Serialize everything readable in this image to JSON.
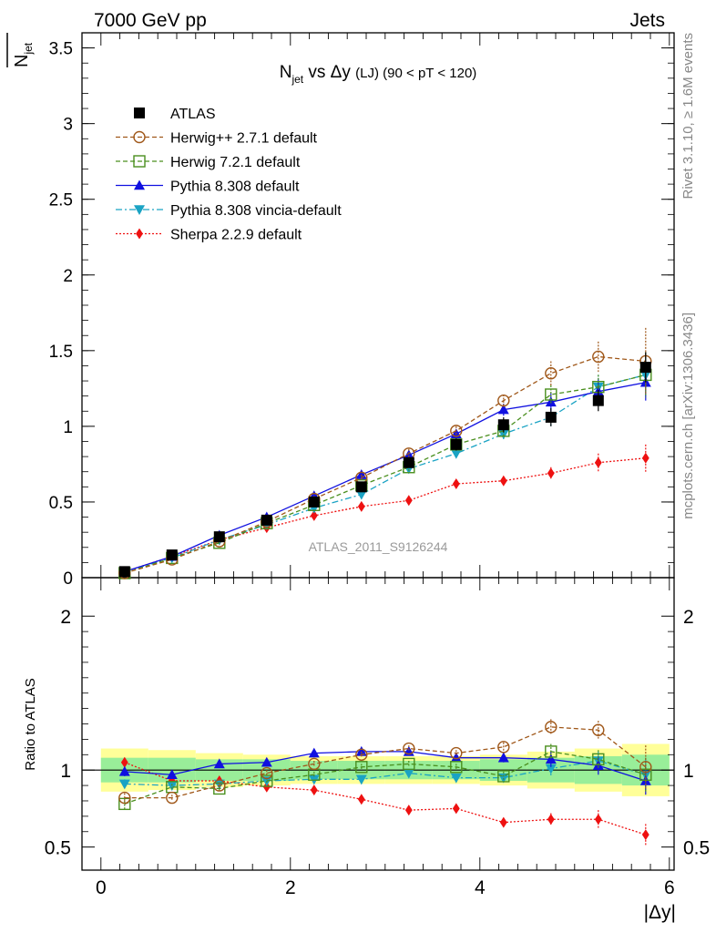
{
  "header": {
    "left": "7000 GeV pp",
    "right": "Jets"
  },
  "side_labels": {
    "rivet": "Rivet 3.1.10, ≥ 1.6M events",
    "mcplots": "mcplots.cern.ch [arXiv:1306.3436]"
  },
  "chart_data": [
    {
      "type": "line",
      "panel": "main",
      "title_parts": {
        "n": "N",
        "sub": "jet",
        "mid": " vs Δy ",
        "small": "(LJ)",
        "tail": " (90 < pT < 120)"
      },
      "ylabel_parts": {
        "n": "N",
        "sub": "jet"
      },
      "watermark": "ATLAS_2011_S9126244",
      "xlim": [
        -0.2,
        6.05
      ],
      "ylim": [
        0,
        3.6
      ],
      "yticks": [
        0,
        0.5,
        1,
        1.5,
        2,
        2.5,
        3,
        3.5
      ],
      "yticklabels": [
        "0",
        "0.5",
        "1",
        "1.5",
        "2",
        "2.5",
        "3",
        "3.5"
      ],
      "x": [
        0.25,
        0.75,
        1.25,
        1.75,
        2.25,
        2.75,
        3.25,
        3.75,
        4.25,
        4.75,
        5.25,
        5.75
      ],
      "legend_position": "top-left",
      "series": [
        {
          "name": "ATLAS",
          "color": "#000000",
          "marker": "square-filled",
          "dash": "",
          "line": false,
          "values": [
            0.04,
            0.15,
            0.27,
            0.38,
            0.5,
            0.6,
            0.76,
            0.88,
            1.01,
            1.06,
            1.17,
            1.39
          ],
          "err": [
            0.01,
            0.01,
            0.02,
            0.02,
            0.02,
            0.03,
            0.03,
            0.04,
            0.05,
            0.06,
            0.07,
            0.1
          ]
        },
        {
          "name": "Herwig++ 2.7.1 default",
          "color": "#a0581a",
          "marker": "circle-open",
          "dash": "5,3",
          "line": true,
          "values": [
            0.03,
            0.12,
            0.24,
            0.37,
            0.52,
            0.66,
            0.82,
            0.97,
            1.17,
            1.35,
            1.46,
            1.43
          ],
          "err": [
            0.005,
            0.01,
            0.01,
            0.01,
            0.02,
            0.02,
            0.03,
            0.03,
            0.04,
            0.08,
            0.1,
            0.22
          ]
        },
        {
          "name": "Herwig 7.2.1 default",
          "color": "#4a8f1e",
          "marker": "square-open",
          "dash": "5,3",
          "line": true,
          "values": [
            0.03,
            0.13,
            0.23,
            0.36,
            0.48,
            0.61,
            0.73,
            0.88,
            0.97,
            1.21,
            1.26,
            1.34
          ],
          "err": [
            0.005,
            0.01,
            0.01,
            0.01,
            0.02,
            0.02,
            0.03,
            0.03,
            0.04,
            0.06,
            0.08,
            0.15
          ]
        },
        {
          "name": "Pythia 8.308 default",
          "color": "#1010e0",
          "marker": "triangle-up",
          "dash": "",
          "line": true,
          "values": [
            0.04,
            0.14,
            0.28,
            0.4,
            0.54,
            0.68,
            0.81,
            0.95,
            1.11,
            1.16,
            1.23,
            1.29
          ],
          "err": [
            0.005,
            0.01,
            0.01,
            0.01,
            0.02,
            0.02,
            0.03,
            0.03,
            0.04,
            0.06,
            0.08,
            0.12
          ]
        },
        {
          "name": "Pythia 8.308 vincia-default",
          "color": "#1aa3c4",
          "marker": "triangle-down",
          "dash": "7,3,2,3",
          "line": true,
          "values": [
            0.04,
            0.13,
            0.25,
            0.35,
            0.46,
            0.55,
            0.72,
            0.82,
            0.95,
            1.06,
            1.26,
            1.34
          ],
          "err": [
            0.005,
            0.01,
            0.01,
            0.01,
            0.02,
            0.02,
            0.03,
            0.03,
            0.04,
            0.06,
            0.08,
            0.14
          ]
        },
        {
          "name": "Sherpa 2.2.9 default",
          "color": "#ee1111",
          "marker": "diamond",
          "dash": "2,2",
          "line": true,
          "values": [
            0.04,
            0.14,
            0.25,
            0.33,
            0.41,
            0.47,
            0.51,
            0.62,
            0.64,
            0.69,
            0.76,
            0.79
          ],
          "err": [
            0.005,
            0.01,
            0.01,
            0.01,
            0.02,
            0.02,
            0.02,
            0.02,
            0.03,
            0.04,
            0.06,
            0.09
          ]
        }
      ]
    },
    {
      "type": "line",
      "panel": "ratio",
      "ylabel": "Ratio to ATLAS",
      "xlabel": "|Δy|",
      "xlim": [
        -0.2,
        6.05
      ],
      "ylim": [
        0.35,
        2.25
      ],
      "xticks": [
        0,
        2,
        4,
        6
      ],
      "xticklabels": [
        "0",
        "2",
        "4",
        "6"
      ],
      "yticks": [
        0.5,
        1,
        2
      ],
      "yticklabels": [
        "0.5",
        "1",
        "2"
      ],
      "x": [
        0.25,
        0.75,
        1.25,
        1.75,
        2.25,
        2.75,
        3.25,
        3.75,
        4.25,
        4.75,
        5.25,
        5.75
      ],
      "bins": [
        [
          0.0,
          0.5
        ],
        [
          0.5,
          1.0
        ],
        [
          1.0,
          1.5
        ],
        [
          1.5,
          2.0
        ],
        [
          2.0,
          2.5
        ],
        [
          2.5,
          3.0
        ],
        [
          3.0,
          3.5
        ],
        [
          3.5,
          4.0
        ],
        [
          4.0,
          4.5
        ],
        [
          4.5,
          5.0
        ],
        [
          5.0,
          5.5
        ],
        [
          5.5,
          6.0
        ]
      ],
      "band_stat": [
        0.08,
        0.08,
        0.07,
        0.07,
        0.06,
        0.06,
        0.06,
        0.06,
        0.07,
        0.08,
        0.09,
        0.1
      ],
      "band_total": [
        0.14,
        0.13,
        0.11,
        0.1,
        0.09,
        0.09,
        0.09,
        0.09,
        0.1,
        0.12,
        0.14,
        0.17
      ],
      "band_colors": {
        "total": "#ffff99",
        "stat": "#99ee99"
      },
      "series": [
        {
          "name": "Herwig++ 2.7.1 default",
          "color": "#a0581a",
          "marker": "circle-open",
          "dash": "5,3",
          "values": [
            0.82,
            0.82,
            0.9,
            0.98,
            1.04,
            1.1,
            1.14,
            1.11,
            1.15,
            1.28,
            1.26,
            1.02
          ],
          "err": [
            0.03,
            0.02,
            0.02,
            0.02,
            0.02,
            0.02,
            0.02,
            0.02,
            0.03,
            0.05,
            0.06,
            0.14
          ]
        },
        {
          "name": "Herwig 7.2.1 default",
          "color": "#4a8f1e",
          "marker": "square-open",
          "dash": "5,3",
          "values": [
            0.78,
            0.89,
            0.88,
            0.93,
            0.97,
            1.02,
            1.04,
            1.02,
            0.96,
            1.12,
            1.07,
            0.97
          ],
          "err": [
            0.04,
            0.02,
            0.02,
            0.02,
            0.02,
            0.02,
            0.02,
            0.02,
            0.03,
            0.05,
            0.06,
            0.11
          ]
        },
        {
          "name": "Pythia 8.308 default",
          "color": "#1010e0",
          "marker": "triangle-up",
          "dash": "",
          "values": [
            0.99,
            0.97,
            1.04,
            1.05,
            1.11,
            1.12,
            1.12,
            1.08,
            1.08,
            1.07,
            1.03,
            0.93
          ],
          "err": [
            0.03,
            0.02,
            0.02,
            0.02,
            0.02,
            0.02,
            0.02,
            0.02,
            0.03,
            0.05,
            0.06,
            0.09
          ]
        },
        {
          "name": "Pythia 8.308 vincia-default",
          "color": "#1aa3c4",
          "marker": "triangle-down",
          "dash": "7,3,2,3",
          "values": [
            0.91,
            0.9,
            0.91,
            0.93,
            0.94,
            0.94,
            0.98,
            0.95,
            0.95,
            1.01,
            1.06,
            0.97
          ],
          "err": [
            0.03,
            0.02,
            0.02,
            0.02,
            0.02,
            0.02,
            0.02,
            0.02,
            0.03,
            0.05,
            0.06,
            0.1
          ]
        },
        {
          "name": "Sherpa 2.2.9 default",
          "color": "#ee1111",
          "marker": "diamond",
          "dash": "2,2",
          "values": [
            1.05,
            0.93,
            0.93,
            0.89,
            0.87,
            0.81,
            0.74,
            0.75,
            0.66,
            0.68,
            0.68,
            0.58
          ],
          "err": [
            0.03,
            0.02,
            0.02,
            0.02,
            0.02,
            0.02,
            0.02,
            0.02,
            0.03,
            0.04,
            0.06,
            0.07
          ]
        }
      ]
    }
  ]
}
